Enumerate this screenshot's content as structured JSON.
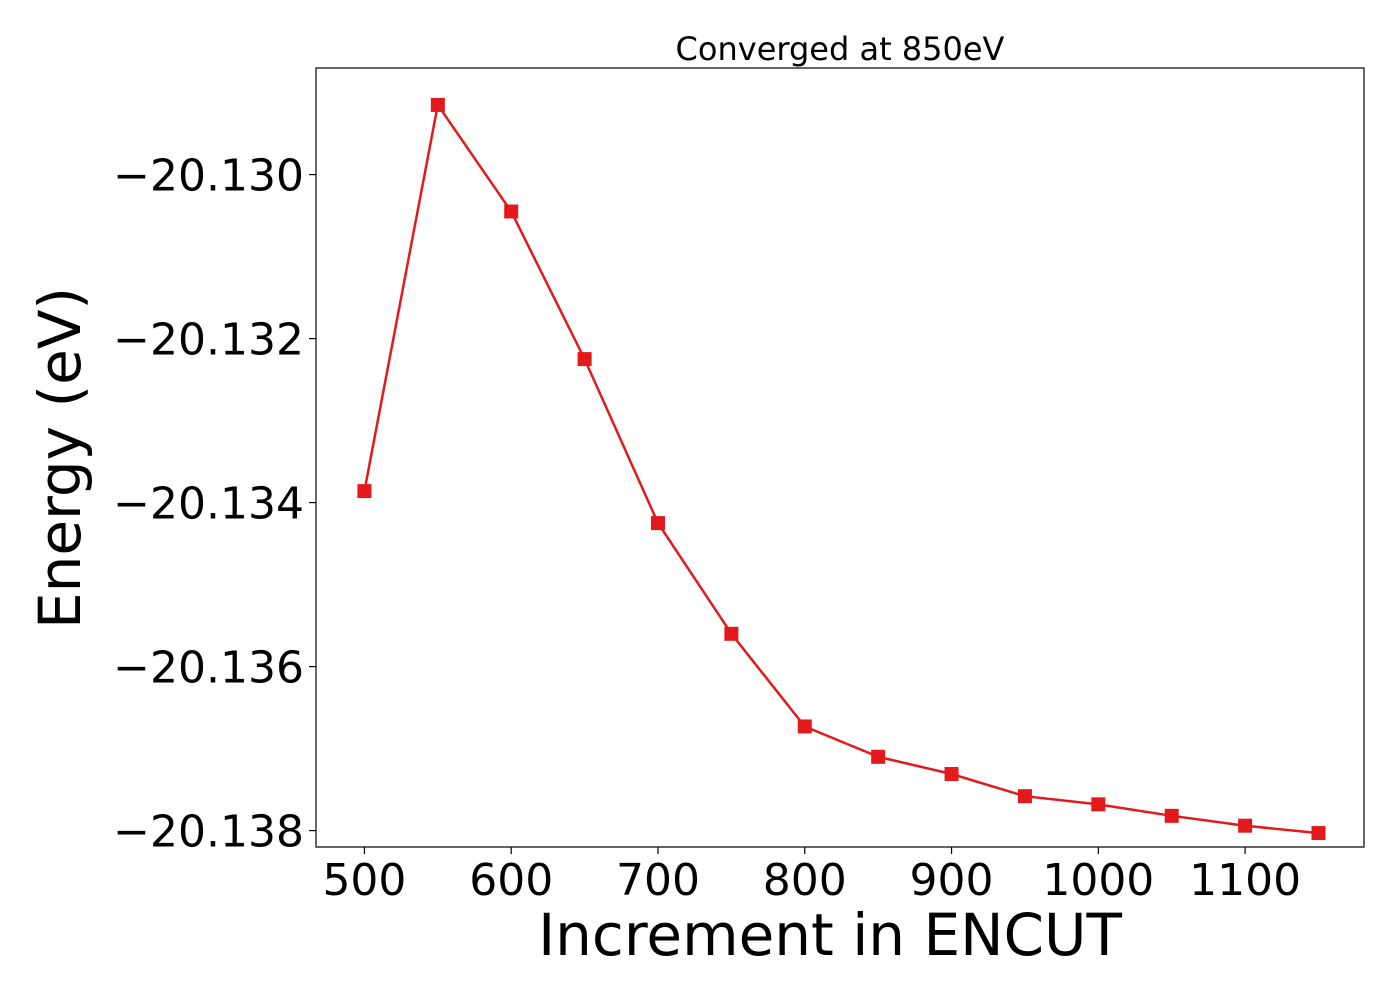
{
  "chart_data": {
    "type": "line",
    "title": "Converged at 850eV",
    "xlabel": "Increment in ENCUT",
    "ylabel": "Energy (eV)",
    "xlim": [
      467,
      1181
    ],
    "ylim": [
      -20.1382,
      -20.1287
    ],
    "xticks": [
      500,
      600,
      700,
      800,
      900,
      1000,
      1100
    ],
    "yticks": [
      -20.13,
      -20.132,
      -20.134,
      -20.136,
      -20.138
    ],
    "ytick_labels": [
      "−20.130",
      "−20.132",
      "−20.134",
      "−20.136",
      "−20.138"
    ],
    "grid": false,
    "series": [
      {
        "color": "#e31a1c",
        "marker": "square",
        "x": [
          500,
          550,
          600,
          650,
          700,
          750,
          800,
          850,
          900,
          950,
          1000,
          1050,
          1100,
          1150
        ],
        "y": [
          -20.13386,
          -20.12915,
          -20.13045,
          -20.13225,
          -20.13425,
          -20.1356,
          -20.13673,
          -20.1371,
          -20.13731,
          -20.13758,
          -20.13768,
          -20.13782,
          -20.13794,
          -20.13803
        ]
      }
    ]
  }
}
